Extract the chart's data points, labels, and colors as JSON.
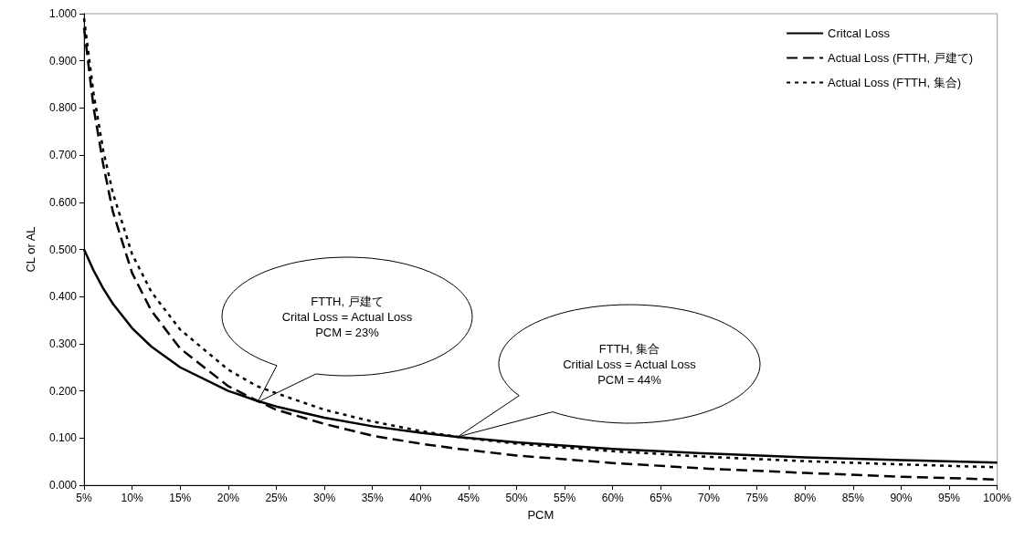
{
  "chart_data": {
    "type": "line",
    "xlabel": "PCM",
    "ylabel": "CL or AL",
    "x": [
      5,
      6,
      7,
      8,
      10,
      12,
      15,
      20,
      23,
      25,
      30,
      35,
      40,
      44,
      50,
      60,
      70,
      80,
      90,
      100
    ],
    "series": [
      {
        "name": "Critcal Loss",
        "color": "#000000",
        "line_style": "solid",
        "values": [
          0.5,
          0.455,
          0.417,
          0.385,
          0.333,
          0.294,
          0.25,
          0.2,
          0.179,
          0.167,
          0.143,
          0.125,
          0.111,
          0.102,
          0.091,
          0.077,
          0.067,
          0.059,
          0.053,
          0.048
        ]
      },
      {
        "name": "Actual Loss (FTTH, 戸建て)",
        "color": "#000000",
        "line_style": "dashed",
        "values": [
          0.97,
          0.8,
          0.68,
          0.58,
          0.45,
          0.37,
          0.29,
          0.21,
          0.179,
          0.16,
          0.13,
          0.105,
          0.088,
          0.077,
          0.063,
          0.047,
          0.035,
          0.026,
          0.018,
          0.012
        ]
      },
      {
        "name": "Actual Loss (FTTH, 集合)",
        "color": "#000000",
        "line_style": "dotted",
        "values": [
          0.99,
          0.83,
          0.71,
          0.62,
          0.49,
          0.41,
          0.33,
          0.245,
          0.21,
          0.195,
          0.16,
          0.135,
          0.115,
          0.102,
          0.088,
          0.072,
          0.06,
          0.051,
          0.044,
          0.038
        ]
      }
    ],
    "xlim": [
      5,
      100
    ],
    "xticks": [
      {
        "value": 5,
        "label": "5%"
      },
      {
        "value": 10,
        "label": "10%"
      },
      {
        "value": 15,
        "label": "15%"
      },
      {
        "value": 20,
        "label": "20%"
      },
      {
        "value": 25,
        "label": "25%"
      },
      {
        "value": 30,
        "label": "30%"
      },
      {
        "value": 35,
        "label": "35%"
      },
      {
        "value": 40,
        "label": "40%"
      },
      {
        "value": 45,
        "label": "45%"
      },
      {
        "value": 50,
        "label": "50%"
      },
      {
        "value": 55,
        "label": "55%"
      },
      {
        "value": 60,
        "label": "60%"
      },
      {
        "value": 65,
        "label": "65%"
      },
      {
        "value": 70,
        "label": "70%"
      },
      {
        "value": 75,
        "label": "75%"
      },
      {
        "value": 80,
        "label": "80%"
      },
      {
        "value": 85,
        "label": "85%"
      },
      {
        "value": 90,
        "label": "90%"
      },
      {
        "value": 95,
        "label": "95%"
      },
      {
        "value": 100,
        "label": "100%"
      }
    ],
    "ylim": [
      0,
      1
    ],
    "yticks": [
      {
        "value": 0,
        "label": "0.000"
      },
      {
        "value": 0.1,
        "label": "0.100"
      },
      {
        "value": 0.2,
        "label": "0.200"
      },
      {
        "value": 0.3,
        "label": "0.300"
      },
      {
        "value": 0.4,
        "label": "0.400"
      },
      {
        "value": 0.5,
        "label": "0.500"
      },
      {
        "value": 0.6,
        "label": "0.600"
      },
      {
        "value": 0.7,
        "label": "0.700"
      },
      {
        "value": 0.8,
        "label": "0.800"
      },
      {
        "value": 0.9,
        "label": "0.900"
      },
      {
        "value": 1,
        "label": "1.000"
      }
    ],
    "annotations": [
      "FTTH, 戸建て\nCrital Loss = Actual Loss\nPCM = 23%",
      "FTTH, 集合\nCritial Loss = Actual Loss\nPCM = 44%"
    ],
    "grid": false,
    "legend": "top right",
    "marker": "none"
  }
}
